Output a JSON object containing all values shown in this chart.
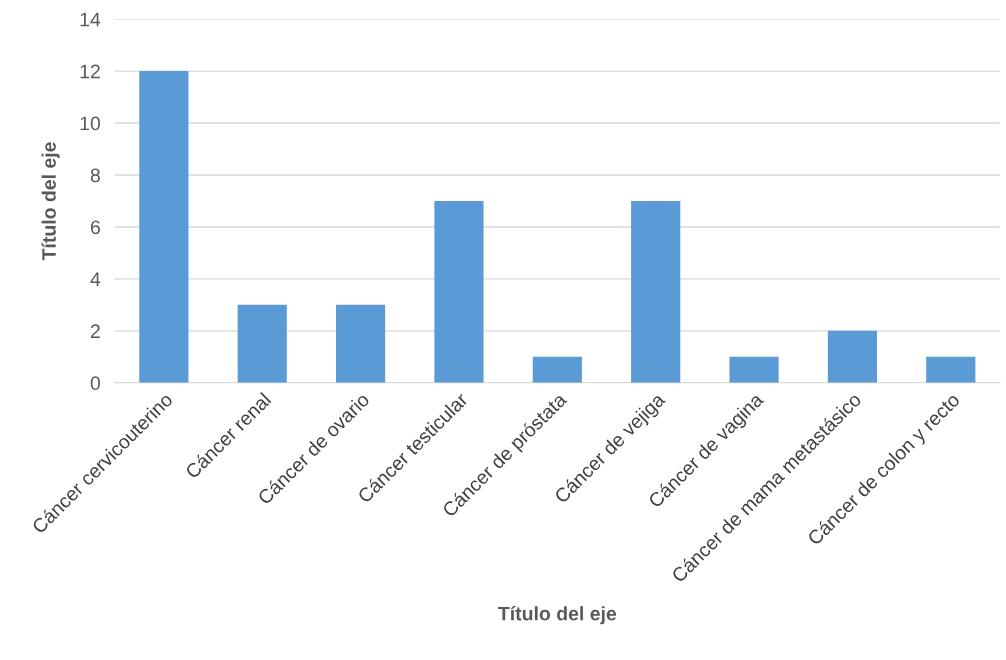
{
  "chart_data": {
    "type": "bar",
    "xlabel": "Título del eje",
    "ylabel": "Título del eje",
    "categories": [
      "Cáncer cervicouterino",
      "Cáncer renal",
      "Cáncer de ovario",
      "Cáncer testicular",
      "Cáncer de próstata",
      "Cáncer de vejiga",
      "Cáncer de vagina",
      "Cáncer de mama metastásico",
      "Cáncer de colon y recto"
    ],
    "values": [
      12,
      3,
      3,
      7,
      1,
      7,
      1,
      2,
      1
    ],
    "color": "#5b9bd5",
    "ylim": [
      0,
      14
    ],
    "yticks": [
      0,
      2,
      4,
      6,
      8,
      10,
      12,
      14
    ],
    "grid": "y"
  }
}
